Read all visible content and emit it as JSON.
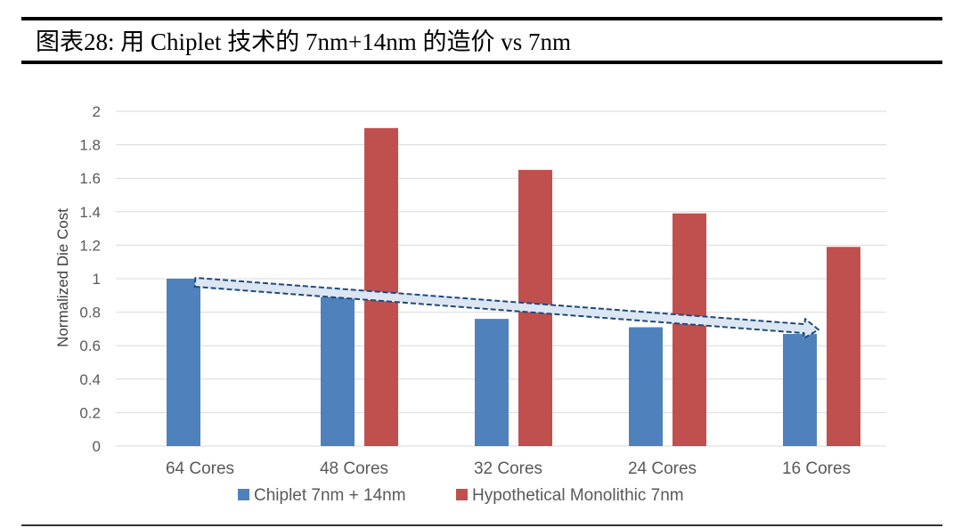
{
  "title": "图表28:  用 Chiplet 技术的 7nm+14nm 的造价  vs 7nm",
  "colors": {
    "series1": "#4f81bd",
    "series2": "#c0504d",
    "grid": "#d9d9d9",
    "axis_text": "#595959",
    "arrow_fill": "#dce6f2",
    "arrow_stroke": "#1f497d"
  },
  "chart_data": {
    "type": "bar",
    "title": "",
    "xlabel": "",
    "ylabel": "Normalized Die Cost",
    "ylim": [
      0,
      2
    ],
    "yticks": [
      "0",
      "0.2",
      "0.4",
      "0.6",
      "0.8",
      "1",
      "1.2",
      "1.4",
      "1.6",
      "1.8",
      "2"
    ],
    "categories": [
      "64 Cores",
      "48 Cores",
      "32 Cores",
      "24 Cores",
      "16 Cores"
    ],
    "series": [
      {
        "name": "Chiplet 7nm + 14nm",
        "values": [
          1.0,
          0.89,
          0.76,
          0.71,
          0.67
        ]
      },
      {
        "name": "Hypothetical Monolithic 7nm",
        "values": [
          null,
          1.9,
          1.65,
          1.39,
          1.19
        ]
      }
    ],
    "legend": "bottom-center",
    "grid": true,
    "annotation": {
      "type": "trend-arrow",
      "from": [
        "64 Cores",
        1.0
      ],
      "to": [
        "16 Cores",
        0.69
      ]
    }
  }
}
